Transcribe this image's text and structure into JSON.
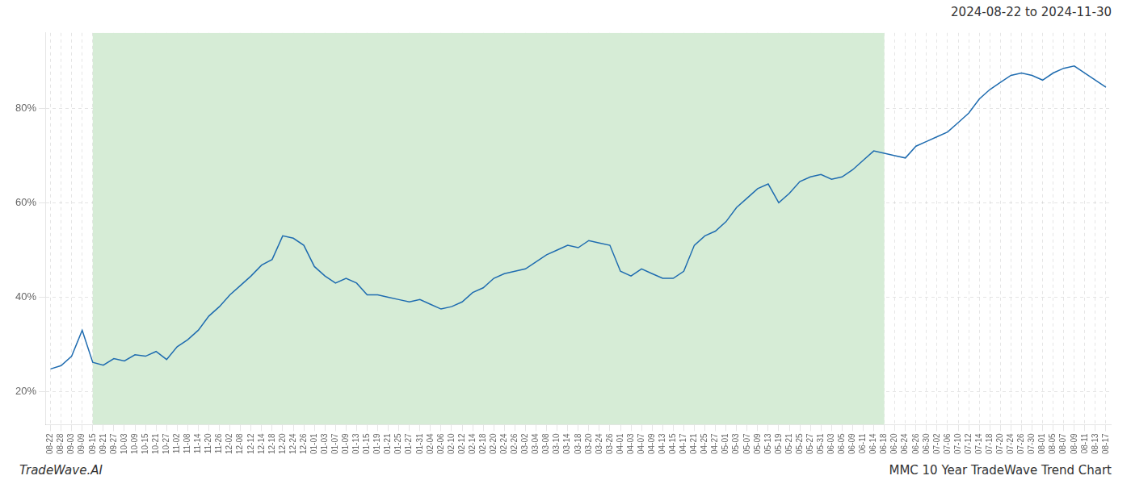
{
  "chart_data": {
    "type": "line",
    "title": "2024-08-22 to 2024-11-30",
    "annotations": [
      "TradeWave.AI",
      "MMC 10 Year TradeWave Trend Chart"
    ],
    "color": "#1f6cb0",
    "shaded_span": {
      "start": "09-15",
      "end": "06-18",
      "color": "#d6ecd6"
    },
    "grid": true,
    "legend": false,
    "ylim": [
      0.13,
      0.96
    ],
    "yticks": [
      {
        "value": 0.2,
        "label": "20%"
      },
      {
        "value": 0.4,
        "label": "40%"
      },
      {
        "value": 0.6,
        "label": "60%"
      },
      {
        "value": 0.8,
        "label": "80%"
      }
    ],
    "categories": [
      "08-22",
      "08-28",
      "09-03",
      "09-09",
      "09-15",
      "09-21",
      "09-27",
      "10-03",
      "10-09",
      "10-15",
      "10-21",
      "10-27",
      "11-02",
      "11-08",
      "11-14",
      "11-20",
      "11-26",
      "12-02",
      "12-08",
      "12-12",
      "12-14",
      "12-18",
      "12-20",
      "12-24",
      "12-26",
      "01-01",
      "01-03",
      "01-07",
      "01-09",
      "01-13",
      "01-15",
      "01-19",
      "01-21",
      "01-25",
      "01-27",
      "01-31",
      "02-04",
      "02-06",
      "02-10",
      "02-12",
      "02-14",
      "02-18",
      "02-20",
      "02-24",
      "02-26",
      "03-02",
      "03-04",
      "03-08",
      "03-10",
      "03-14",
      "03-18",
      "03-20",
      "03-24",
      "03-26",
      "04-01",
      "04-03",
      "04-07",
      "04-09",
      "04-13",
      "04-15",
      "04-17",
      "04-21",
      "04-25",
      "04-27",
      "05-01",
      "05-03",
      "05-07",
      "05-09",
      "05-13",
      "05-19",
      "05-21",
      "05-25",
      "05-27",
      "05-31",
      "06-03",
      "06-05",
      "06-09",
      "06-11",
      "06-14",
      "06-18",
      "06-20",
      "06-24",
      "06-26",
      "06-30",
      "07-02",
      "07-06",
      "07-10",
      "07-12",
      "07-14",
      "07-18",
      "07-20",
      "07-24",
      "07-26",
      "07-30",
      "08-01",
      "08-05",
      "08-07",
      "08-09",
      "08-11",
      "08-13",
      "08-17"
    ],
    "values": [
      0.248,
      0.255,
      0.275,
      0.33,
      0.262,
      0.256,
      0.27,
      0.265,
      0.278,
      0.275,
      0.285,
      0.268,
      0.295,
      0.31,
      0.33,
      0.36,
      0.38,
      0.405,
      0.425,
      0.445,
      0.468,
      0.48,
      0.53,
      0.525,
      0.51,
      0.465,
      0.445,
      0.43,
      0.44,
      0.43,
      0.405,
      0.405,
      0.4,
      0.395,
      0.39,
      0.395,
      0.385,
      0.375,
      0.38,
      0.39,
      0.41,
      0.42,
      0.44,
      0.45,
      0.455,
      0.46,
      0.475,
      0.49,
      0.5,
      0.51,
      0.505,
      0.52,
      0.515,
      0.51,
      0.455,
      0.445,
      0.46,
      0.45,
      0.44,
      0.44,
      0.455,
      0.51,
      0.53,
      0.54,
      0.56,
      0.59,
      0.61,
      0.63,
      0.64,
      0.6,
      0.62,
      0.645,
      0.655,
      0.66,
      0.65,
      0.655,
      0.67,
      0.69,
      0.71,
      0.705,
      0.7,
      0.695,
      0.72,
      0.73,
      0.74,
      0.75,
      0.77,
      0.79,
      0.82,
      0.84,
      0.855,
      0.87,
      0.875,
      0.87,
      0.86,
      0.875,
      0.885,
      0.89,
      0.875,
      0.86,
      0.845
    ]
  }
}
